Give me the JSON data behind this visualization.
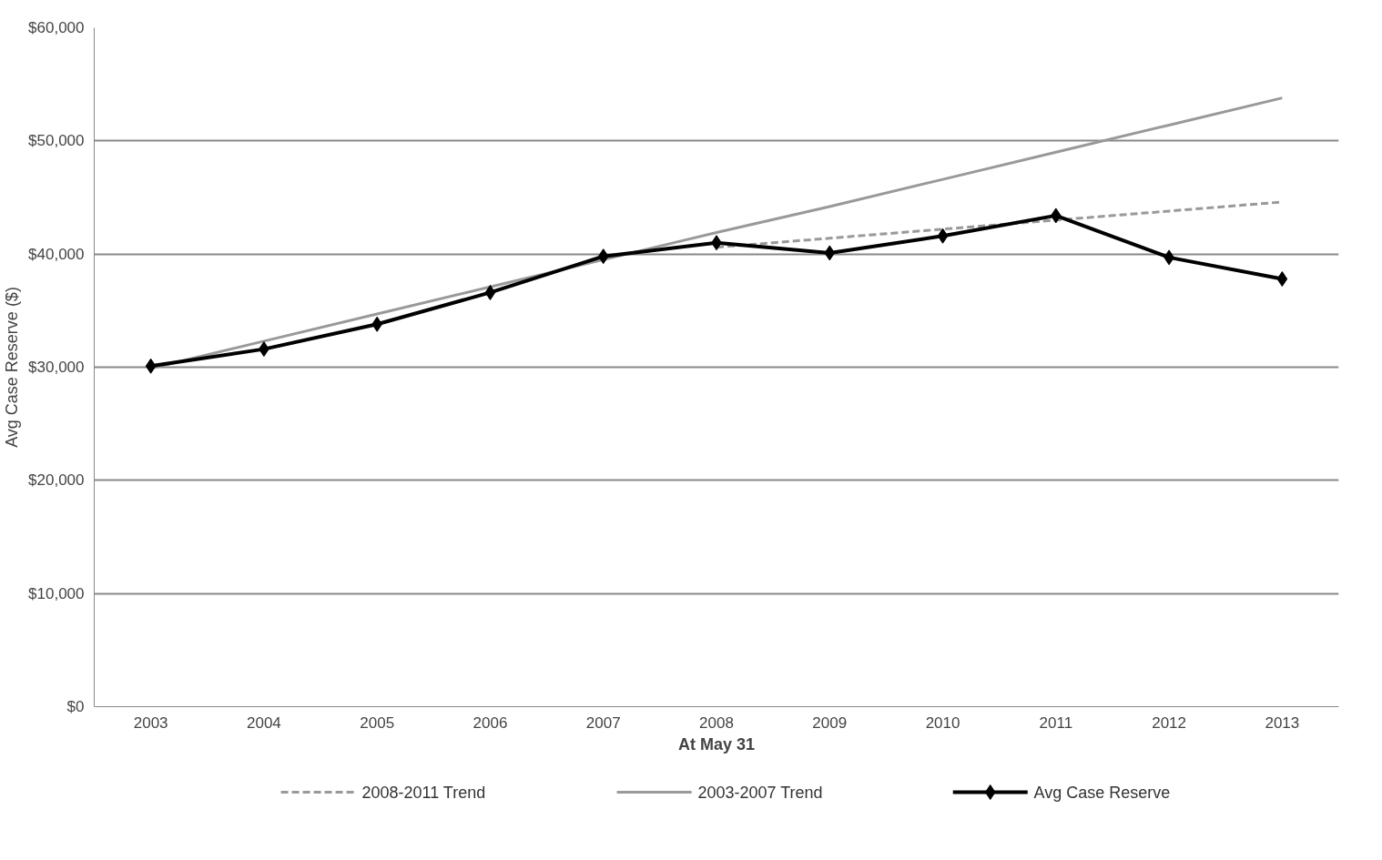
{
  "chart_data": {
    "type": "line",
    "xlabel": "At May 31",
    "ylabel": "Avg Case Reserve ($)",
    "categories": [
      "2003",
      "2004",
      "2005",
      "2006",
      "2007",
      "2008",
      "2009",
      "2010",
      "2011",
      "2012",
      "2013"
    ],
    "series": [
      {
        "name": "2008-2011 Trend",
        "color": "#999999",
        "line_style": "dashed",
        "marker": "none",
        "values": [
          null,
          null,
          null,
          null,
          null,
          40600,
          41400,
          42200,
          43000,
          43800,
          44600
        ]
      },
      {
        "name": "2003-2007 Trend",
        "color": "#999999",
        "line_style": "solid",
        "marker": "none",
        "values": [
          29900,
          32300,
          34700,
          37100,
          39500,
          41900,
          44200,
          46600,
          49000,
          51400,
          53800
        ]
      },
      {
        "name": "Avg Case Reserve",
        "color": "#000000",
        "line_style": "solid",
        "marker": "diamond",
        "values": [
          30100,
          31600,
          33800,
          36600,
          39800,
          41000,
          40100,
          41600,
          43400,
          39700,
          37800
        ]
      }
    ],
    "ylim": [
      0,
      60000
    ],
    "yticks": [
      {
        "value": 0,
        "label": "$0"
      },
      {
        "value": 10000,
        "label": "$10,000"
      },
      {
        "value": 20000,
        "label": "$20,000"
      },
      {
        "value": 30000,
        "label": "$30,000"
      },
      {
        "value": 40000,
        "label": "$40,000"
      },
      {
        "value": 50000,
        "label": "$50,000"
      },
      {
        "value": 60000,
        "label": "$60,000"
      }
    ],
    "grid": "y",
    "legend": "bottom"
  }
}
